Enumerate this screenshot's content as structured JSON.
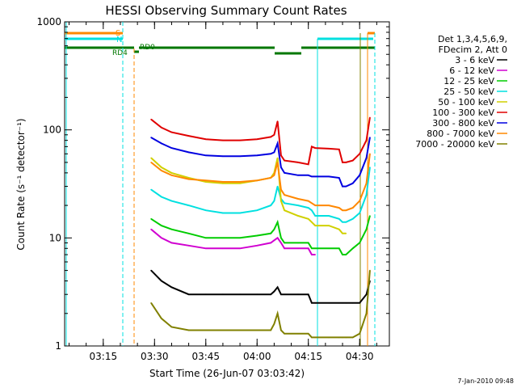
{
  "chart_data": {
    "type": "line",
    "title": "HESSI Observing Summary Count Rates",
    "xlabel": "Start Time (26-Jun-07 03:03:42)",
    "ylabel": "Count Rate (s⁻¹ detector⁻¹)",
    "ylim": [
      1,
      1000
    ],
    "yscale": "log",
    "xlim_minutes_after_start": [
      0,
      95
    ],
    "x_ticks": [
      "03:15",
      "03:30",
      "03:45",
      "04:00",
      "04:15",
      "04:30"
    ],
    "y_ticks": [
      "1",
      "10",
      "100",
      "1000"
    ],
    "legend_header": [
      "Det 1,3,4,5,6,9,",
      "FDecim 2, Att 0"
    ],
    "legend_position": "right",
    "flag_labels": [
      "S",
      "N",
      "RD4",
      "RD0"
    ],
    "timestamp": "7-Jan-2010 09:48",
    "x_times": [
      "03:29",
      "03:32",
      "03:35",
      "03:40",
      "03:45",
      "03:50",
      "03:55",
      "04:00",
      "04:04",
      "04:05",
      "04:06",
      "04:07",
      "04:08",
      "04:12",
      "04:15",
      "04:16",
      "04:17",
      "04:21",
      "04:24",
      "04:25",
      "04:26",
      "04:28",
      "04:30",
      "04:32",
      "04:33",
      "04:34"
    ],
    "series": [
      {
        "name": "3 - 6 keV",
        "color": "#000000",
        "values": [
          5,
          4,
          3.5,
          3,
          3,
          3,
          3,
          3,
          3,
          3.2,
          3.5,
          3,
          3,
          3,
          3,
          2.5,
          2.5,
          2.5,
          2.5,
          2.5,
          2.5,
          2.5,
          2.5,
          3,
          4,
          null
        ]
      },
      {
        "name": "6 - 12 keV",
        "color": "#d000d0",
        "values": [
          12,
          10,
          9,
          8.5,
          8,
          8,
          8,
          8.5,
          9,
          9.5,
          10,
          9,
          8,
          8,
          8,
          7,
          7,
          null,
          null,
          null,
          null,
          null,
          null,
          null,
          null,
          null
        ]
      },
      {
        "name": "12 - 25 keV",
        "color": "#00cc00",
        "values": [
          15,
          13,
          12,
          11,
          10,
          10,
          10,
          10.5,
          11,
          12,
          14,
          10,
          9,
          9,
          9,
          8,
          8,
          8,
          8,
          7,
          7,
          8,
          9,
          12,
          16,
          null
        ]
      },
      {
        "name": "25 - 50 keV",
        "color": "#00e0e0",
        "values": [
          28,
          24,
          22,
          20,
          18,
          17,
          17,
          18,
          20,
          22,
          30,
          23,
          21,
          20,
          19,
          18,
          16,
          16,
          15,
          14,
          14,
          15,
          17,
          25,
          45,
          null
        ]
      },
      {
        "name": "50 - 100 keV",
        "color": "#d0d000",
        "values": [
          55,
          45,
          40,
          36,
          33,
          32,
          32,
          34,
          36,
          40,
          55,
          22,
          18,
          16,
          15,
          14,
          13,
          13,
          12,
          11,
          11,
          null,
          null,
          null,
          null,
          null
        ]
      },
      {
        "name": "100 - 300 keV",
        "color": "#e00000",
        "values": [
          125,
          105,
          95,
          88,
          82,
          80,
          80,
          82,
          86,
          90,
          120,
          58,
          52,
          50,
          48,
          70,
          68,
          67,
          66,
          50,
          50,
          52,
          60,
          80,
          130,
          null
        ]
      },
      {
        "name": "300 - 800 keV",
        "color": "#0000e0",
        "values": [
          85,
          75,
          68,
          62,
          58,
          57,
          57,
          58,
          60,
          62,
          75,
          45,
          40,
          38,
          38,
          37,
          37,
          37,
          36,
          30,
          30,
          32,
          38,
          55,
          85,
          null
        ]
      },
      {
        "name": "800 - 7000 keV",
        "color": "#ff8800",
        "values": [
          50,
          42,
          38,
          35,
          34,
          33,
          33,
          34,
          36,
          38,
          50,
          28,
          25,
          23,
          22,
          21,
          20,
          20,
          19,
          18,
          18,
          19,
          22,
          32,
          60,
          null
        ]
      },
      {
        "name": "7000 - 20000 keV",
        "color": "#808000",
        "values": [
          2.5,
          1.8,
          1.5,
          1.4,
          1.4,
          1.4,
          1.4,
          1.4,
          1.4,
          1.6,
          2,
          1.4,
          1.3,
          1.3,
          1.3,
          1.2,
          1.2,
          1.2,
          1.2,
          1.2,
          1.2,
          1.2,
          1.3,
          2,
          5,
          null
        ]
      }
    ]
  }
}
